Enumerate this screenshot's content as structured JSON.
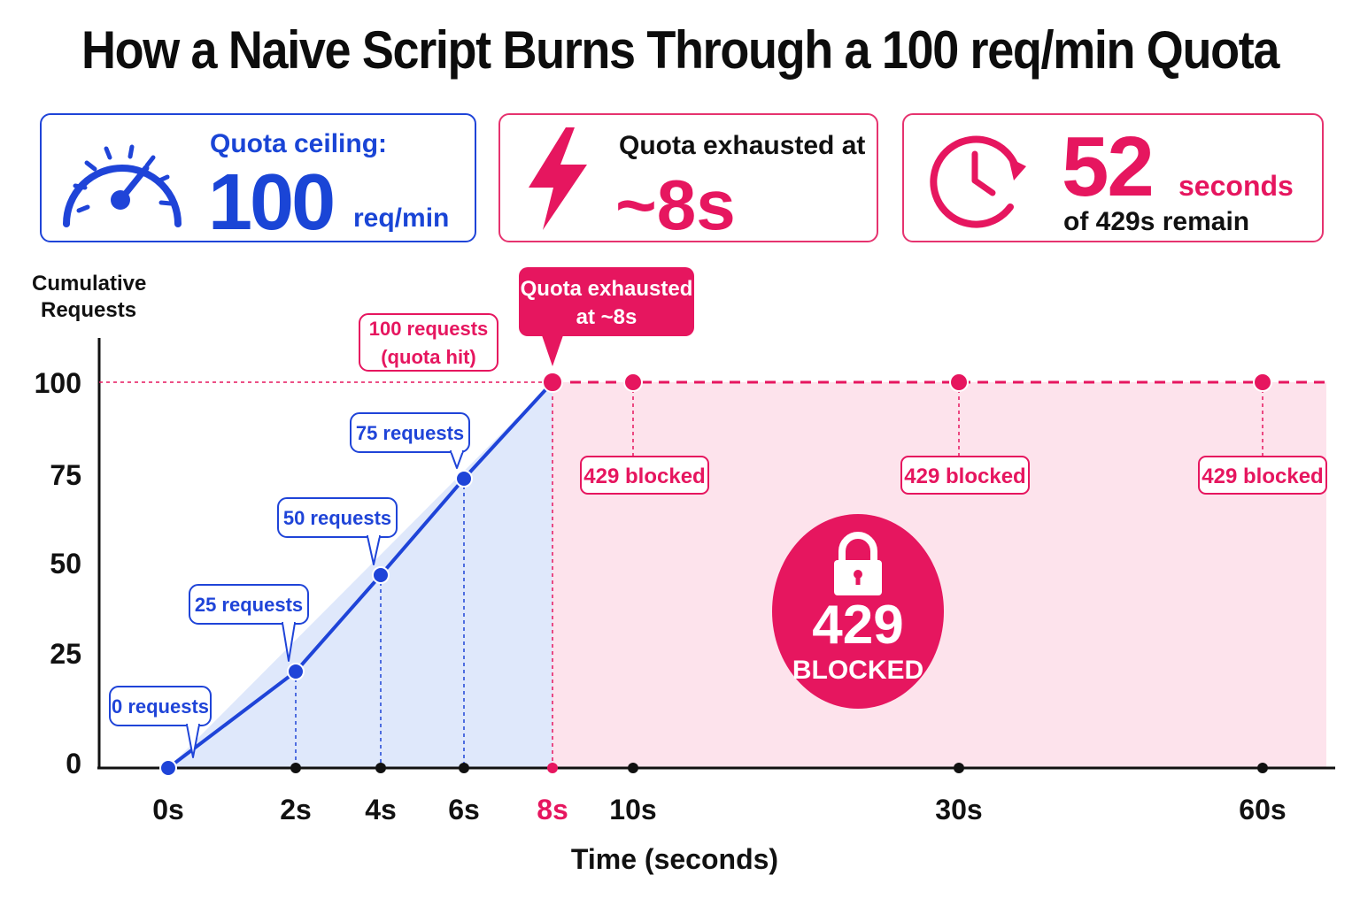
{
  "title": "How a Naive Script Burns Through a 100 req/min Quota",
  "cards": {
    "ceiling": {
      "label": "Quota ceiling:",
      "value": "100",
      "unit": "req/min",
      "icon": "speedometer-icon"
    },
    "exhausted": {
      "label": "Quota exhausted at",
      "value": "~8s",
      "icon": "lightning-icon"
    },
    "remaining": {
      "value": "52",
      "unit": "seconds",
      "sub": "of 429s remain",
      "icon": "clock-icon"
    }
  },
  "chart_data": {
    "type": "line",
    "ylabel_lines": [
      "Cumulative",
      "Requests"
    ],
    "xlabel": "Time (seconds)",
    "y_ticks": [
      0,
      25,
      50,
      75,
      100
    ],
    "x_ticks": [
      {
        "value": 0,
        "label": "0s"
      },
      {
        "value": 2,
        "label": "2s"
      },
      {
        "value": 4,
        "label": "4s"
      },
      {
        "value": 6,
        "label": "6s"
      },
      {
        "value": 8,
        "label": "8s",
        "highlight": true
      },
      {
        "value": 10,
        "label": "10s"
      },
      {
        "value": 30,
        "label": "30s"
      },
      {
        "value": 60,
        "label": "60s"
      }
    ],
    "ramp_points": [
      {
        "x": 0,
        "y": 0,
        "label": "0 requests"
      },
      {
        "x": 2,
        "y": 25,
        "label": "25 requests"
      },
      {
        "x": 4,
        "y": 50,
        "label": "50 requests"
      },
      {
        "x": 6,
        "y": 75,
        "label": "75 requests"
      },
      {
        "x": 8,
        "y": 100,
        "label_lines": [
          "100 requests",
          "(quota hit)"
        ]
      }
    ],
    "blocked_points": [
      {
        "x": 10,
        "y": 100,
        "label": "429 blocked"
      },
      {
        "x": 30,
        "y": 100,
        "label": "429 blocked"
      },
      {
        "x": 60,
        "y": 100,
        "label": "429 blocked"
      }
    ],
    "ceiling": 100,
    "exhaust_callout_lines": [
      "Quota exhausted",
      "at ~8s"
    ],
    "badge": {
      "code": "429",
      "text": "BLOCKED"
    },
    "colors": {
      "blue": "#1f44d8",
      "pink": "#e6165f",
      "blue_fill": "#dfe8fb",
      "pink_fill": "#fde3ec"
    }
  }
}
